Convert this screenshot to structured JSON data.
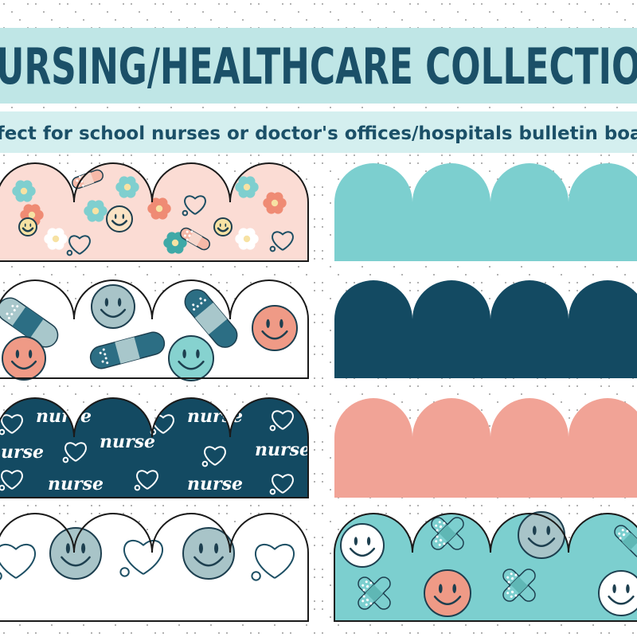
{
  "header": {
    "title": "NURSING/HEALTHCARE COLLECTION",
    "subtitle": "Perfect for school nurses or doctor's offices/hospitals bulletin boards"
  },
  "pattern_text": "nurse"
}
